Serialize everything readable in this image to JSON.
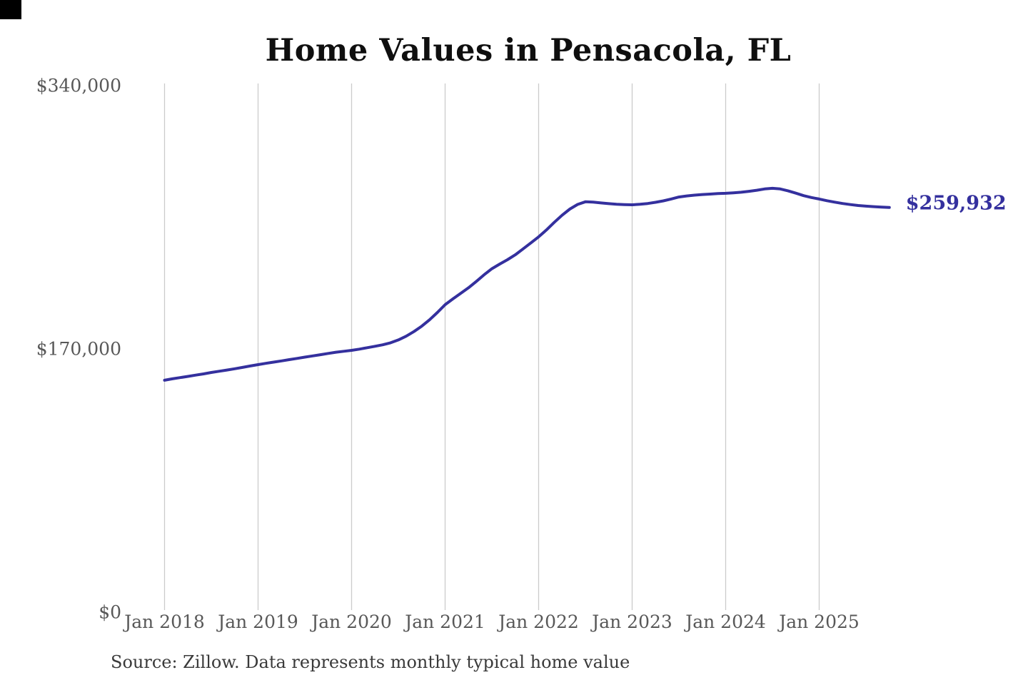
{
  "page": {
    "background_color": "#ffffff",
    "corner_mark_color": "#000000"
  },
  "chart_data": {
    "type": "line",
    "title": "Home Values in Pensacola, FL",
    "source_note": "Source: Zillow. Data represents monthly typical home value",
    "series_name": "Monthly typical home value",
    "x_start_month": "2018-01",
    "x_end_month": "2025-10",
    "ylim": [
      0,
      340000
    ],
    "grid": "vertical-only",
    "legend": "none",
    "line_color": "#34309e",
    "gridline_color": "#cbcbcb",
    "tick_label_color": "#585858",
    "end_value": 259932,
    "end_value_label": "$259,932",
    "y_ticks": [
      {
        "label": "$0",
        "value": 0
      },
      {
        "label": "$170,000",
        "value": 170000
      },
      {
        "label": "$340,000",
        "value": 340000
      }
    ],
    "x_ticks": [
      {
        "label": "Jan 2018",
        "month_index": 0
      },
      {
        "label": "Jan 2019",
        "month_index": 12
      },
      {
        "label": "Jan 2020",
        "month_index": 24
      },
      {
        "label": "Jan 2021",
        "month_index": 36
      },
      {
        "label": "Jan 2022",
        "month_index": 48
      },
      {
        "label": "Jan 2023",
        "month_index": 60
      },
      {
        "label": "Jan 2024",
        "month_index": 72
      },
      {
        "label": "Jan 2025",
        "month_index": 84
      }
    ],
    "values": [
      148400,
      149300,
      150100,
      150900,
      151700,
      152500,
      153400,
      154200,
      155000,
      155800,
      156700,
      157600,
      158500,
      159300,
      160100,
      160900,
      161700,
      162500,
      163300,
      164100,
      164900,
      165700,
      166500,
      167100,
      167700,
      168500,
      169400,
      170300,
      171300,
      172600,
      174400,
      176800,
      179800,
      183300,
      187400,
      192100,
      197200,
      200900,
      204500,
      208100,
      212200,
      216500,
      220400,
      223400,
      226200,
      229400,
      233200,
      237100,
      241000,
      245400,
      250300,
      254900,
      258900,
      261900,
      263600,
      263400,
      262900,
      262400,
      262000,
      261800,
      261700,
      262000,
      262500,
      263300,
      264200,
      265400,
      266700,
      267400,
      267900,
      268300,
      268600,
      268900,
      269100,
      269400,
      269800,
      270400,
      271100,
      271900,
      272300,
      271900,
      270700,
      269200,
      267600,
      266400,
      265400,
      264300,
      263400,
      262500,
      261800,
      261200,
      260800,
      260500,
      260200,
      259932
    ]
  }
}
